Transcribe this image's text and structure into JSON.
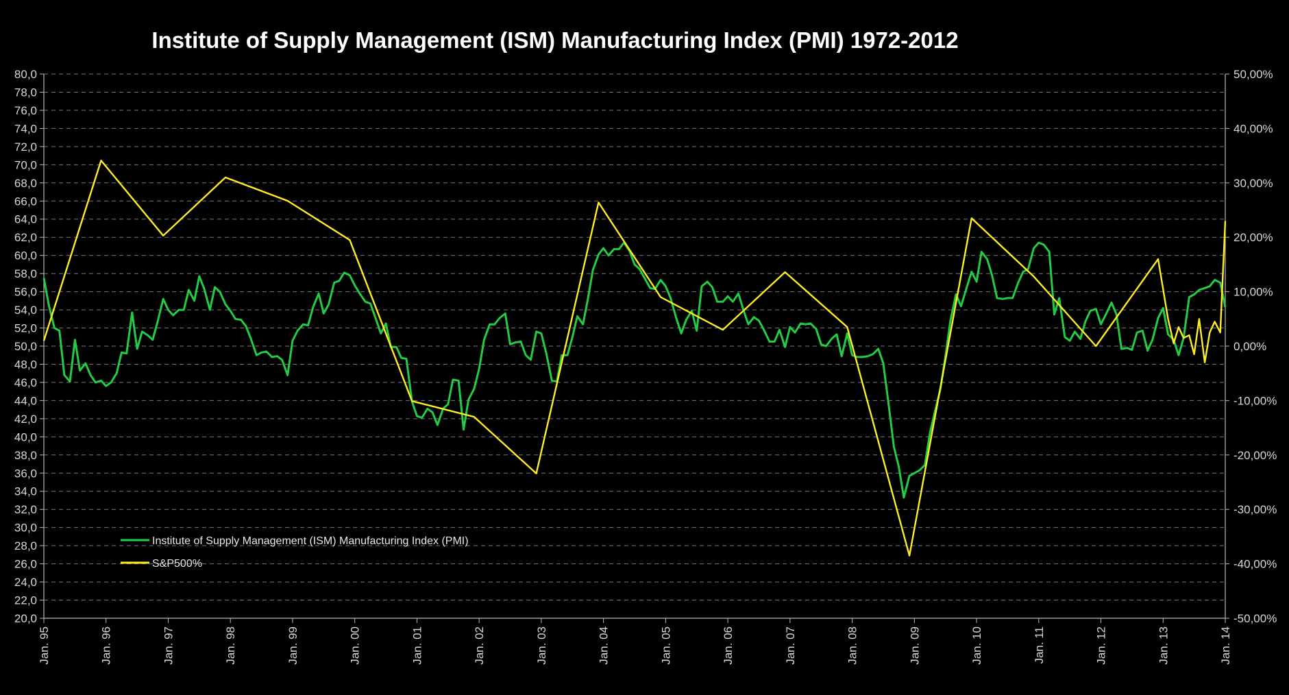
{
  "chart_data": {
    "type": "line",
    "title": "Institute of Supply Management (ISM) Manufacturing Index (PMI) 1972-2012",
    "categories": [
      "Jan. 95",
      "Jan. 96",
      "Jan. 97",
      "Jan. 98",
      "Jan. 99",
      "Jan. 00",
      "Jan. 01",
      "Jan. 02",
      "Jan. 03",
      "Jan. 04",
      "Jan. 05",
      "Jan. 06",
      "Jan. 07",
      "Jan. 08",
      "Jan. 09",
      "Jan. 10",
      "Jan. 11",
      "Jan. 12",
      "Jan. 13",
      "Jan. 14"
    ],
    "left_axis": {
      "range": [
        20,
        80
      ],
      "step": 2,
      "labels": [
        "20,0",
        "22,0",
        "24,0",
        "26,0",
        "28,0",
        "30,0",
        "32,0",
        "34,0",
        "36,0",
        "38,0",
        "40,0",
        "42,0",
        "44,0",
        "46,0",
        "48,0",
        "50,0",
        "52,0",
        "54,0",
        "56,0",
        "58,0",
        "60,0",
        "62,0",
        "64,0",
        "66,0",
        "68,0",
        "70,0",
        "72,0",
        "74,0",
        "76,0",
        "78,0",
        "80,0"
      ]
    },
    "right_axis": {
      "range": [
        -50,
        50
      ],
      "labels": [
        "-50,00%",
        "-40,00%",
        "-30,00%",
        "-20,00%",
        "-10,00%",
        "0,00%",
        "10,00%",
        "20,00%",
        "30,00%",
        "40,00%",
        "50,00%"
      ]
    },
    "grid": true,
    "legend_position": "bottom-left",
    "series": [
      {
        "name": "Institute of Supply Management (ISM) Manufacturing Index (PMI)",
        "color": "#22cc44",
        "axis": "left",
        "points": [
          [
            0,
            57.5
          ],
          [
            0.08,
            54.5
          ],
          [
            0.17,
            52.0
          ],
          [
            0.25,
            51.7
          ],
          [
            0.33,
            46.8
          ],
          [
            0.42,
            46.1
          ],
          [
            0.5,
            50.7
          ],
          [
            0.58,
            47.3
          ],
          [
            0.67,
            48.1
          ],
          [
            0.75,
            46.8
          ],
          [
            0.83,
            46.0
          ],
          [
            0.92,
            46.2
          ],
          [
            1.0,
            45.6
          ],
          [
            1.08,
            46.0
          ],
          [
            1.17,
            47.0
          ],
          [
            1.25,
            49.3
          ],
          [
            1.33,
            49.2
          ],
          [
            1.42,
            53.7
          ],
          [
            1.5,
            49.7
          ],
          [
            1.58,
            51.6
          ],
          [
            1.67,
            51.2
          ],
          [
            1.75,
            50.7
          ],
          [
            1.83,
            52.7
          ],
          [
            1.92,
            55.2
          ],
          [
            2.0,
            54.0
          ],
          [
            2.08,
            53.4
          ],
          [
            2.17,
            54.0
          ],
          [
            2.25,
            54.0
          ],
          [
            2.33,
            56.2
          ],
          [
            2.42,
            55.0
          ],
          [
            2.5,
            57.7
          ],
          [
            2.58,
            56.3
          ],
          [
            2.67,
            54.0
          ],
          [
            2.75,
            56.5
          ],
          [
            2.83,
            56.0
          ],
          [
            2.92,
            54.6
          ],
          [
            3.0,
            53.9
          ],
          [
            3.08,
            53.0
          ],
          [
            3.17,
            52.9
          ],
          [
            3.25,
            52.2
          ],
          [
            3.33,
            50.8
          ],
          [
            3.42,
            49.0
          ],
          [
            3.5,
            49.3
          ],
          [
            3.58,
            49.4
          ],
          [
            3.67,
            48.8
          ],
          [
            3.75,
            48.9
          ],
          [
            3.83,
            48.5
          ],
          [
            3.92,
            46.8
          ],
          [
            4.0,
            50.6
          ],
          [
            4.08,
            51.7
          ],
          [
            4.17,
            52.4
          ],
          [
            4.25,
            52.3
          ],
          [
            4.33,
            54.3
          ],
          [
            4.42,
            55.8
          ],
          [
            4.5,
            53.6
          ],
          [
            4.58,
            54.6
          ],
          [
            4.67,
            57.0
          ],
          [
            4.75,
            57.2
          ],
          [
            4.83,
            58.1
          ],
          [
            4.92,
            57.8
          ],
          [
            5.0,
            56.7
          ],
          [
            5.08,
            55.8
          ],
          [
            5.17,
            54.9
          ],
          [
            5.25,
            54.7
          ],
          [
            5.33,
            53.2
          ],
          [
            5.42,
            51.4
          ],
          [
            5.5,
            52.5
          ],
          [
            5.58,
            49.9
          ],
          [
            5.67,
            49.9
          ],
          [
            5.75,
            48.7
          ],
          [
            5.83,
            48.6
          ],
          [
            5.92,
            43.9
          ],
          [
            6.0,
            42.3
          ],
          [
            6.08,
            42.1
          ],
          [
            6.17,
            43.1
          ],
          [
            6.25,
            42.7
          ],
          [
            6.33,
            41.3
          ],
          [
            6.42,
            43.1
          ],
          [
            6.5,
            43.6
          ],
          [
            6.58,
            46.3
          ],
          [
            6.67,
            46.2
          ],
          [
            6.75,
            40.8
          ],
          [
            6.83,
            44.1
          ],
          [
            6.92,
            45.3
          ],
          [
            7.0,
            47.5
          ],
          [
            7.08,
            50.7
          ],
          [
            7.17,
            52.4
          ],
          [
            7.25,
            52.4
          ],
          [
            7.33,
            53.1
          ],
          [
            7.42,
            53.6
          ],
          [
            7.5,
            50.2
          ],
          [
            7.58,
            50.4
          ],
          [
            7.67,
            50.5
          ],
          [
            7.75,
            49.0
          ],
          [
            7.83,
            48.5
          ],
          [
            7.92,
            51.6
          ],
          [
            8.0,
            51.4
          ],
          [
            8.08,
            49.2
          ],
          [
            8.17,
            46.2
          ],
          [
            8.25,
            46.1
          ],
          [
            8.33,
            49.0
          ],
          [
            8.42,
            49.0
          ],
          [
            8.5,
            51.0
          ],
          [
            8.58,
            53.3
          ],
          [
            8.67,
            52.4
          ],
          [
            8.75,
            55.2
          ],
          [
            8.83,
            58.4
          ],
          [
            8.92,
            60.1
          ],
          [
            9.0,
            60.8
          ],
          [
            9.08,
            60.0
          ],
          [
            9.17,
            60.7
          ],
          [
            9.25,
            60.7
          ],
          [
            9.33,
            61.4
          ],
          [
            9.42,
            60.5
          ],
          [
            9.5,
            59.0
          ],
          [
            9.58,
            58.5
          ],
          [
            9.67,
            57.4
          ],
          [
            9.75,
            56.4
          ],
          [
            9.83,
            56.3
          ],
          [
            9.92,
            57.3
          ],
          [
            10.0,
            56.6
          ],
          [
            10.08,
            55.3
          ],
          [
            10.17,
            53.1
          ],
          [
            10.25,
            51.4
          ],
          [
            10.33,
            52.9
          ],
          [
            10.42,
            53.9
          ],
          [
            10.5,
            51.7
          ],
          [
            10.58,
            56.6
          ],
          [
            10.67,
            57.1
          ],
          [
            10.75,
            56.5
          ],
          [
            10.83,
            54.9
          ],
          [
            10.92,
            54.9
          ],
          [
            11.0,
            55.5
          ],
          [
            11.08,
            54.9
          ],
          [
            11.17,
            55.8
          ],
          [
            11.25,
            54.0
          ],
          [
            11.33,
            52.4
          ],
          [
            11.42,
            53.2
          ],
          [
            11.5,
            52.8
          ],
          [
            11.58,
            51.8
          ],
          [
            11.67,
            50.5
          ],
          [
            11.75,
            50.5
          ],
          [
            11.83,
            51.8
          ],
          [
            11.92,
            49.9
          ],
          [
            12.0,
            52.1
          ],
          [
            12.08,
            51.5
          ],
          [
            12.17,
            52.5
          ],
          [
            12.25,
            52.4
          ],
          [
            12.33,
            52.5
          ],
          [
            12.42,
            51.9
          ],
          [
            12.5,
            50.2
          ],
          [
            12.58,
            50.0
          ],
          [
            12.67,
            50.8
          ],
          [
            12.75,
            51.3
          ],
          [
            12.83,
            48.9
          ],
          [
            12.92,
            51.4
          ],
          [
            13.0,
            49.0
          ],
          [
            13.08,
            48.8
          ],
          [
            13.17,
            48.8
          ],
          [
            13.25,
            48.9
          ],
          [
            13.33,
            49.1
          ],
          [
            13.42,
            49.7
          ],
          [
            13.5,
            48.1
          ],
          [
            13.58,
            43.9
          ],
          [
            13.67,
            38.9
          ],
          [
            13.75,
            36.7
          ],
          [
            13.83,
            33.3
          ],
          [
            13.92,
            35.7
          ],
          [
            14.0,
            36.0
          ],
          [
            14.08,
            36.3
          ],
          [
            14.17,
            36.9
          ],
          [
            14.25,
            40.4
          ],
          [
            14.33,
            42.8
          ],
          [
            14.42,
            45.3
          ],
          [
            14.5,
            48.9
          ],
          [
            14.58,
            52.8
          ],
          [
            14.67,
            55.7
          ],
          [
            14.75,
            54.4
          ],
          [
            14.83,
            56.2
          ],
          [
            14.92,
            58.2
          ],
          [
            15.0,
            57.1
          ],
          [
            15.08,
            60.4
          ],
          [
            15.17,
            59.6
          ],
          [
            15.25,
            57.8
          ],
          [
            15.33,
            55.3
          ],
          [
            15.42,
            55.2
          ],
          [
            15.5,
            55.3
          ],
          [
            15.58,
            55.3
          ],
          [
            15.67,
            57.0
          ],
          [
            15.75,
            58.2
          ],
          [
            15.83,
            58.5
          ],
          [
            15.92,
            60.8
          ],
          [
            16.0,
            61.4
          ],
          [
            16.08,
            61.2
          ],
          [
            16.17,
            60.4
          ],
          [
            16.25,
            53.5
          ],
          [
            16.33,
            55.3
          ],
          [
            16.42,
            51.0
          ],
          [
            16.5,
            50.6
          ],
          [
            16.58,
            51.6
          ],
          [
            16.67,
            50.8
          ],
          [
            16.75,
            52.7
          ],
          [
            16.83,
            53.9
          ],
          [
            16.92,
            54.1
          ],
          [
            17.0,
            52.4
          ],
          [
            17.08,
            53.5
          ],
          [
            17.17,
            54.8
          ],
          [
            17.25,
            53.5
          ],
          [
            17.33,
            49.7
          ],
          [
            17.42,
            49.8
          ],
          [
            17.5,
            49.6
          ],
          [
            17.58,
            51.5
          ],
          [
            17.67,
            51.7
          ],
          [
            17.75,
            49.5
          ],
          [
            17.83,
            50.7
          ],
          [
            17.92,
            53.1
          ],
          [
            18.0,
            54.2
          ],
          [
            18.08,
            51.3
          ],
          [
            18.17,
            50.7
          ],
          [
            18.25,
            49.0
          ],
          [
            18.33,
            50.9
          ],
          [
            18.42,
            55.4
          ],
          [
            18.5,
            55.7
          ],
          [
            18.58,
            56.2
          ],
          [
            18.67,
            56.4
          ],
          [
            18.75,
            56.6
          ],
          [
            18.83,
            57.3
          ],
          [
            18.92,
            57.0
          ],
          [
            19.0,
            54.3
          ]
        ]
      },
      {
        "name": "S&P500%",
        "color": "#ffee22",
        "axis": "right",
        "points": [
          [
            0,
            1.0
          ],
          [
            0.92,
            34.1
          ],
          [
            1.92,
            20.3
          ],
          [
            2.92,
            31.0
          ],
          [
            3.92,
            26.7
          ],
          [
            4.92,
            19.5
          ],
          [
            5.92,
            -10.1
          ],
          [
            6.92,
            -13.0
          ],
          [
            7.92,
            -23.4
          ],
          [
            8.92,
            26.4
          ],
          [
            9.92,
            9.0
          ],
          [
            10.92,
            3.0
          ],
          [
            11.92,
            13.6
          ],
          [
            12.92,
            3.5
          ],
          [
            13.92,
            -38.5
          ],
          [
            14.92,
            23.5
          ],
          [
            15.92,
            12.8
          ],
          [
            16.92,
            0.0
          ],
          [
            17.92,
            16.0
          ],
          [
            18.08,
            5.0
          ],
          [
            18.17,
            0.5
          ],
          [
            18.25,
            3.5
          ],
          [
            18.33,
            1.5
          ],
          [
            18.42,
            2.0
          ],
          [
            18.5,
            -1.5
          ],
          [
            18.58,
            5.0
          ],
          [
            18.67,
            -3.0
          ],
          [
            18.75,
            2.5
          ],
          [
            18.83,
            4.5
          ],
          [
            18.92,
            2.5
          ],
          [
            19.0,
            23.0
          ]
        ]
      }
    ]
  }
}
